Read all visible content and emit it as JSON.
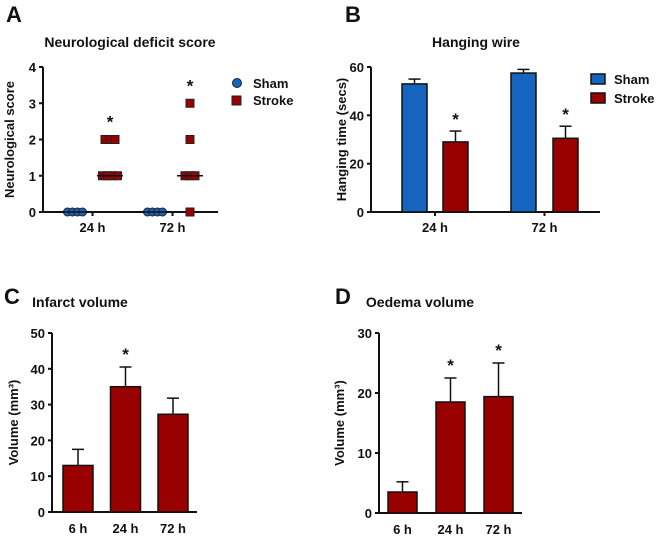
{
  "colors": {
    "sham": "#1565c0",
    "stroke": "#990000",
    "axis": "#111111"
  },
  "chart_data": [
    {
      "panel": "A",
      "type": "scatter",
      "title": "Neurological deficit score",
      "ylabel": "Neurological score",
      "ylim": [
        0,
        4
      ],
      "yticks": [
        "0",
        "1",
        "2",
        "3",
        "4"
      ],
      "categories": [
        "24 h",
        "72 h"
      ],
      "legend": {
        "position": "right",
        "entries": [
          "Sham",
          "Stroke"
        ]
      },
      "series": [
        {
          "name": "Sham",
          "marker": "circle",
          "points": [
            [
              0,
              0,
              0,
              0
            ],
            [
              0,
              0,
              0,
              0
            ]
          ],
          "median": [
            0,
            0
          ]
        },
        {
          "name": "Stroke",
          "marker": "square",
          "points": [
            [
              1,
              1,
              1,
              1,
              2,
              2,
              2
            ],
            [
              0,
              1,
              1,
              1,
              2,
              3
            ]
          ],
          "median": [
            1,
            1
          ]
        }
      ],
      "annotations": [
        {
          "category": "24 h",
          "text": "*"
        },
        {
          "category": "72 h",
          "text": "*"
        }
      ]
    },
    {
      "panel": "B",
      "type": "bar",
      "title": "Hanging wire",
      "ylabel": "Hanging time (secs)",
      "ylim": [
        0,
        60
      ],
      "yticks": [
        "0",
        "20",
        "40",
        "60"
      ],
      "categories": [
        "24 h",
        "72 h"
      ],
      "legend": {
        "position": "right",
        "entries": [
          "Sham",
          "Stroke"
        ]
      },
      "series": [
        {
          "name": "Sham",
          "values": [
            53,
            57.5
          ],
          "errors": [
            2,
            1.5
          ]
        },
        {
          "name": "Stroke",
          "values": [
            29,
            30.5
          ],
          "errors": [
            4.5,
            5
          ]
        }
      ],
      "annotations": [
        {
          "category": "24 h",
          "series": "Stroke",
          "text": "*"
        },
        {
          "category": "72 h",
          "series": "Stroke",
          "text": "*"
        }
      ]
    },
    {
      "panel": "C",
      "type": "bar",
      "title": "Infarct volume",
      "ylabel": "Volume (mm³)",
      "ylim": [
        0,
        50
      ],
      "yticks": [
        "0",
        "10",
        "20",
        "30",
        "40",
        "50"
      ],
      "categories": [
        "6 h",
        "24 h",
        "72 h"
      ],
      "values": [
        13,
        35,
        27.3
      ],
      "errors": [
        4.5,
        5.5,
        4.5
      ],
      "annotations": [
        {
          "category": "24 h",
          "text": "*"
        }
      ]
    },
    {
      "panel": "D",
      "type": "bar",
      "title": "Oedema volume",
      "ylabel": "Volume (mm³)",
      "ylim": [
        0,
        30
      ],
      "yticks": [
        "0",
        "10",
        "20",
        "30"
      ],
      "categories": [
        "6 h",
        "24 h",
        "72 h"
      ],
      "values": [
        3.5,
        18.5,
        19.4
      ],
      "errors": [
        1.7,
        4,
        5.6
      ],
      "annotations": [
        {
          "category": "24 h",
          "text": "*"
        },
        {
          "category": "72 h",
          "text": "*"
        }
      ]
    }
  ]
}
